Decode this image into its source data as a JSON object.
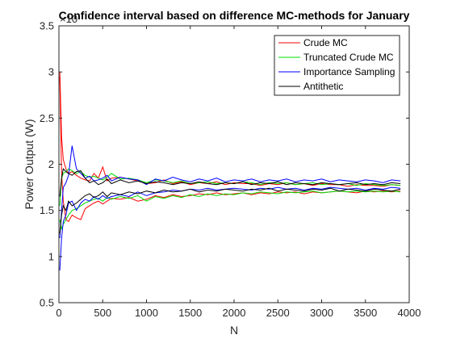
{
  "chart_data": {
    "type": "line",
    "title": "Confidence interval based on difference MC-methods for January",
    "xlabel": "N",
    "ylabel": "Power Output (W)",
    "xlim": [
      0,
      4000
    ],
    "ylim": [
      0.5,
      3.5
    ],
    "xticks": [
      "0",
      "500",
      "1000",
      "1500",
      "2000",
      "2500",
      "3000",
      "3500",
      "4000"
    ],
    "yticks": [
      "0.5",
      "1",
      "1.5",
      "2",
      "2.5",
      "3",
      "3.5"
    ],
    "y_exponent_label": "×10",
    "legend_position": "top-right",
    "series": [
      {
        "name": "Crude MC",
        "color": "#ff0000",
        "upper": {
          "x": [
            10,
            30,
            50,
            80,
            110,
            150,
            200,
            250,
            300,
            350,
            400,
            450,
            500,
            550,
            600,
            700,
            800,
            900,
            1000,
            1100,
            1200,
            1300,
            1400,
            1500,
            1600,
            1700,
            1800,
            1900,
            2000,
            2100,
            2200,
            2300,
            2400,
            2500,
            2600,
            2700,
            2800,
            2900,
            3000,
            3100,
            3200,
            3300,
            3400,
            3500,
            3600,
            3700,
            3800,
            3900
          ],
          "y": [
            3.0,
            2.3,
            2.05,
            1.95,
            1.9,
            1.92,
            1.88,
            1.85,
            1.83,
            1.82,
            1.9,
            1.85,
            1.97,
            1.82,
            1.85,
            1.86,
            1.84,
            1.82,
            1.79,
            1.8,
            1.83,
            1.79,
            1.81,
            1.78,
            1.8,
            1.79,
            1.81,
            1.78,
            1.8,
            1.79,
            1.79,
            1.77,
            1.79,
            1.78,
            1.8,
            1.78,
            1.79,
            1.77,
            1.79,
            1.78,
            1.78,
            1.76,
            1.78,
            1.77,
            1.77,
            1.76,
            1.78,
            1.77
          ]
        },
        "lower": {
          "x": [
            10,
            30,
            50,
            80,
            110,
            150,
            200,
            250,
            300,
            350,
            400,
            450,
            500,
            550,
            600,
            700,
            800,
            900,
            1000,
            1100,
            1200,
            1300,
            1400,
            1500,
            1600,
            1700,
            1800,
            1900,
            2000,
            2100,
            2200,
            2300,
            2400,
            2500,
            2600,
            2700,
            2800,
            2900,
            3000,
            3100,
            3200,
            3300,
            3400,
            3500,
            3600,
            3700,
            3800,
            3900
          ],
          "y": [
            2.95,
            1.9,
            1.6,
            1.4,
            1.38,
            1.45,
            1.42,
            1.4,
            1.52,
            1.55,
            1.58,
            1.6,
            1.57,
            1.6,
            1.63,
            1.62,
            1.64,
            1.6,
            1.62,
            1.66,
            1.64,
            1.67,
            1.65,
            1.66,
            1.68,
            1.67,
            1.69,
            1.67,
            1.68,
            1.69,
            1.67,
            1.69,
            1.68,
            1.7,
            1.69,
            1.7,
            1.68,
            1.7,
            1.69,
            1.7,
            1.71,
            1.7,
            1.69,
            1.71,
            1.7,
            1.71,
            1.7,
            1.71
          ]
        }
      },
      {
        "name": "Truncated Crude MC",
        "color": "#00dd00",
        "upper": {
          "x": [
            10,
            30,
            50,
            80,
            110,
            150,
            200,
            250,
            300,
            350,
            400,
            450,
            500,
            550,
            600,
            700,
            800,
            900,
            1000,
            1100,
            1200,
            1300,
            1400,
            1500,
            1600,
            1700,
            1800,
            1900,
            2000,
            2100,
            2200,
            2300,
            2400,
            2500,
            2600,
            2700,
            2800,
            2900,
            3000,
            3100,
            3200,
            3300,
            3400,
            3500,
            3600,
            3700,
            3800,
            3900
          ],
          "y": [
            1.55,
            1.85,
            1.9,
            1.92,
            1.95,
            1.93,
            1.9,
            1.92,
            1.88,
            1.86,
            1.87,
            1.85,
            1.83,
            1.86,
            1.9,
            1.84,
            1.85,
            1.83,
            1.8,
            1.83,
            1.82,
            1.8,
            1.82,
            1.79,
            1.8,
            1.81,
            1.79,
            1.8,
            1.79,
            1.81,
            1.8,
            1.78,
            1.8,
            1.79,
            1.8,
            1.78,
            1.79,
            1.8,
            1.78,
            1.79,
            1.78,
            1.79,
            1.77,
            1.79,
            1.78,
            1.77,
            1.78,
            1.77
          ]
        },
        "lower": {
          "x": [
            10,
            30,
            50,
            80,
            110,
            150,
            200,
            250,
            300,
            350,
            400,
            450,
            500,
            550,
            600,
            700,
            800,
            900,
            1000,
            1100,
            1200,
            1300,
            1400,
            1500,
            1600,
            1700,
            1800,
            1900,
            2000,
            2100,
            2200,
            2300,
            2400,
            2500,
            2600,
            2700,
            2800,
            2900,
            3000,
            3100,
            3200,
            3300,
            3400,
            3500,
            3600,
            3700,
            3800,
            3900
          ],
          "y": [
            1.4,
            1.3,
            1.35,
            1.4,
            1.45,
            1.5,
            1.52,
            1.55,
            1.58,
            1.6,
            1.62,
            1.63,
            1.6,
            1.64,
            1.62,
            1.65,
            1.63,
            1.66,
            1.6,
            1.65,
            1.63,
            1.66,
            1.64,
            1.67,
            1.65,
            1.68,
            1.66,
            1.68,
            1.67,
            1.69,
            1.68,
            1.7,
            1.69,
            1.68,
            1.7,
            1.69,
            1.7,
            1.71,
            1.69,
            1.7,
            1.71,
            1.7,
            1.71,
            1.7,
            1.71,
            1.7,
            1.71,
            1.7
          ]
        }
      },
      {
        "name": "Importance Sampling",
        "color": "#0000ff",
        "upper": {
          "x": [
            10,
            30,
            50,
            80,
            110,
            150,
            200,
            250,
            300,
            350,
            400,
            450,
            500,
            550,
            600,
            700,
            800,
            900,
            1000,
            1100,
            1200,
            1300,
            1400,
            1500,
            1600,
            1700,
            1800,
            1900,
            2000,
            2100,
            2200,
            2300,
            2400,
            2500,
            2600,
            2700,
            2800,
            2900,
            3000,
            3100,
            3200,
            3300,
            3400,
            3500,
            3600,
            3700,
            3800,
            3900
          ],
          "y": [
            1.2,
            1.5,
            1.75,
            1.8,
            1.88,
            2.2,
            1.95,
            1.9,
            1.85,
            1.87,
            1.82,
            1.83,
            1.85,
            1.88,
            1.82,
            1.86,
            1.84,
            1.83,
            1.78,
            1.84,
            1.82,
            1.86,
            1.83,
            1.81,
            1.84,
            1.82,
            1.85,
            1.81,
            1.83,
            1.82,
            1.84,
            1.81,
            1.83,
            1.82,
            1.84,
            1.81,
            1.83,
            1.82,
            1.84,
            1.81,
            1.83,
            1.82,
            1.81,
            1.83,
            1.82,
            1.8,
            1.83,
            1.82
          ]
        },
        "lower": {
          "x": [
            10,
            30,
            50,
            80,
            110,
            150,
            200,
            250,
            300,
            350,
            400,
            450,
            500,
            550,
            600,
            700,
            800,
            900,
            1000,
            1100,
            1200,
            1300,
            1400,
            1500,
            1600,
            1700,
            1800,
            1900,
            2000,
            2100,
            2200,
            2300,
            2400,
            2500,
            2600,
            2700,
            2800,
            2900,
            3000,
            3100,
            3200,
            3300,
            3400,
            3500,
            3600,
            3700,
            3800,
            3900
          ],
          "y": [
            0.85,
            1.2,
            1.38,
            1.45,
            1.58,
            1.6,
            1.5,
            1.58,
            1.62,
            1.6,
            1.65,
            1.62,
            1.66,
            1.63,
            1.65,
            1.67,
            1.65,
            1.7,
            1.66,
            1.69,
            1.7,
            1.72,
            1.71,
            1.73,
            1.72,
            1.74,
            1.72,
            1.73,
            1.74,
            1.73,
            1.72,
            1.74,
            1.73,
            1.75,
            1.73,
            1.74,
            1.72,
            1.74,
            1.73,
            1.75,
            1.74,
            1.73,
            1.74,
            1.72,
            1.74,
            1.73,
            1.75,
            1.74
          ]
        }
      },
      {
        "name": "Antithetic",
        "color": "#000000",
        "upper": {
          "x": [
            10,
            30,
            50,
            80,
            110,
            150,
            200,
            250,
            300,
            350,
            400,
            450,
            500,
            550,
            600,
            700,
            800,
            900,
            1000,
            1100,
            1200,
            1300,
            1400,
            1500,
            1600,
            1700,
            1800,
            1900,
            2000,
            2100,
            2200,
            2300,
            2400,
            2500,
            2600,
            2700,
            2800,
            2900,
            3000,
            3100,
            3200,
            3300,
            3400,
            3500,
            3600,
            3700,
            3800,
            3900
          ],
          "y": [
            1.65,
            1.85,
            1.95,
            1.92,
            1.9,
            1.88,
            1.92,
            1.93,
            1.85,
            1.8,
            1.82,
            1.78,
            1.8,
            1.84,
            1.79,
            1.83,
            1.8,
            1.82,
            1.79,
            1.81,
            1.8,
            1.78,
            1.8,
            1.79,
            1.81,
            1.79,
            1.78,
            1.8,
            1.79,
            1.81,
            1.78,
            1.8,
            1.79,
            1.81,
            1.78,
            1.8,
            1.79,
            1.78,
            1.8,
            1.79,
            1.78,
            1.79,
            1.8,
            1.78,
            1.79,
            1.78,
            1.8,
            1.79
          ]
        },
        "lower": {
          "x": [
            10,
            30,
            50,
            80,
            110,
            150,
            200,
            250,
            300,
            350,
            400,
            450,
            500,
            550,
            600,
            700,
            800,
            900,
            1000,
            1100,
            1200,
            1300,
            1400,
            1500,
            1600,
            1700,
            1800,
            1900,
            2000,
            2100,
            2200,
            2300,
            2400,
            2500,
            2600,
            2700,
            2800,
            2900,
            3000,
            3100,
            3200,
            3300,
            3400,
            3500,
            3600,
            3700,
            3800,
            3900
          ],
          "y": [
            1.25,
            1.45,
            1.55,
            1.5,
            1.6,
            1.55,
            1.58,
            1.62,
            1.66,
            1.68,
            1.64,
            1.66,
            1.7,
            1.65,
            1.69,
            1.67,
            1.7,
            1.68,
            1.71,
            1.69,
            1.72,
            1.7,
            1.71,
            1.73,
            1.7,
            1.72,
            1.71,
            1.73,
            1.72,
            1.71,
            1.73,
            1.72,
            1.74,
            1.71,
            1.73,
            1.72,
            1.71,
            1.73,
            1.72,
            1.74,
            1.71,
            1.73,
            1.72,
            1.71,
            1.73,
            1.72,
            1.71,
            1.73
          ]
        }
      }
    ]
  }
}
